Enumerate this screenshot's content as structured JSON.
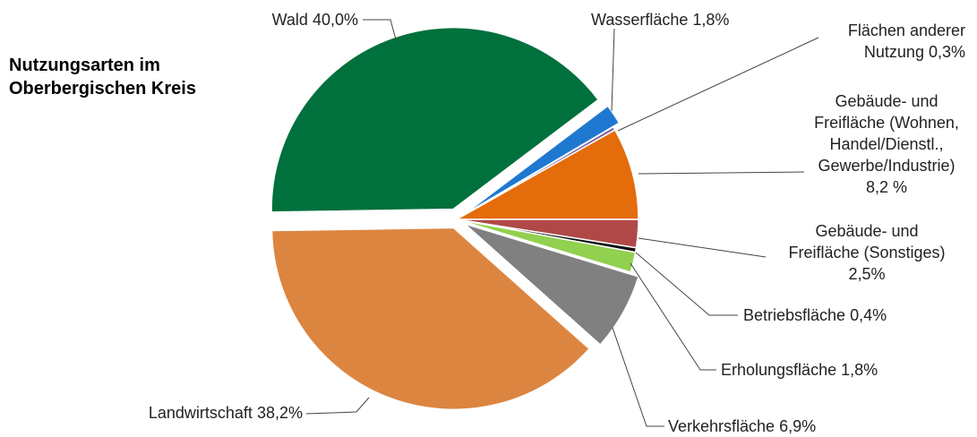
{
  "chart_data": {
    "type": "pie",
    "title": "Nutzungsarten im Oberbergischen Kreis",
    "categories": [
      "Wald",
      "Wasserfläche",
      "Flächen anderer Nutzung",
      "Gebäude- und Freifläche (Wohnen, Handel/Dienstl., Gewerbe/Industrie)",
      "Gebäude- und Freifläche (Sonstiges)",
      "Betriebsfläche",
      "Erholungsfläche",
      "Verkehrsfläche",
      "Landwirtschaft"
    ],
    "values": [
      40.0,
      1.8,
      0.3,
      8.2,
      2.5,
      0.4,
      1.8,
      6.9,
      38.2
    ],
    "value_labels": [
      "40,0%",
      "1,8%",
      "0,3%",
      "8,2 %",
      "2,5%",
      "0,4%",
      "1,8%",
      "6,9%",
      "38,2%"
    ],
    "colors": [
      "#00703c",
      "#1f78d0",
      "#7b62a3",
      "#e46c0a",
      "#b04848",
      "#111111",
      "#92d050",
      "#808080",
      "#dc8540"
    ]
  }
}
